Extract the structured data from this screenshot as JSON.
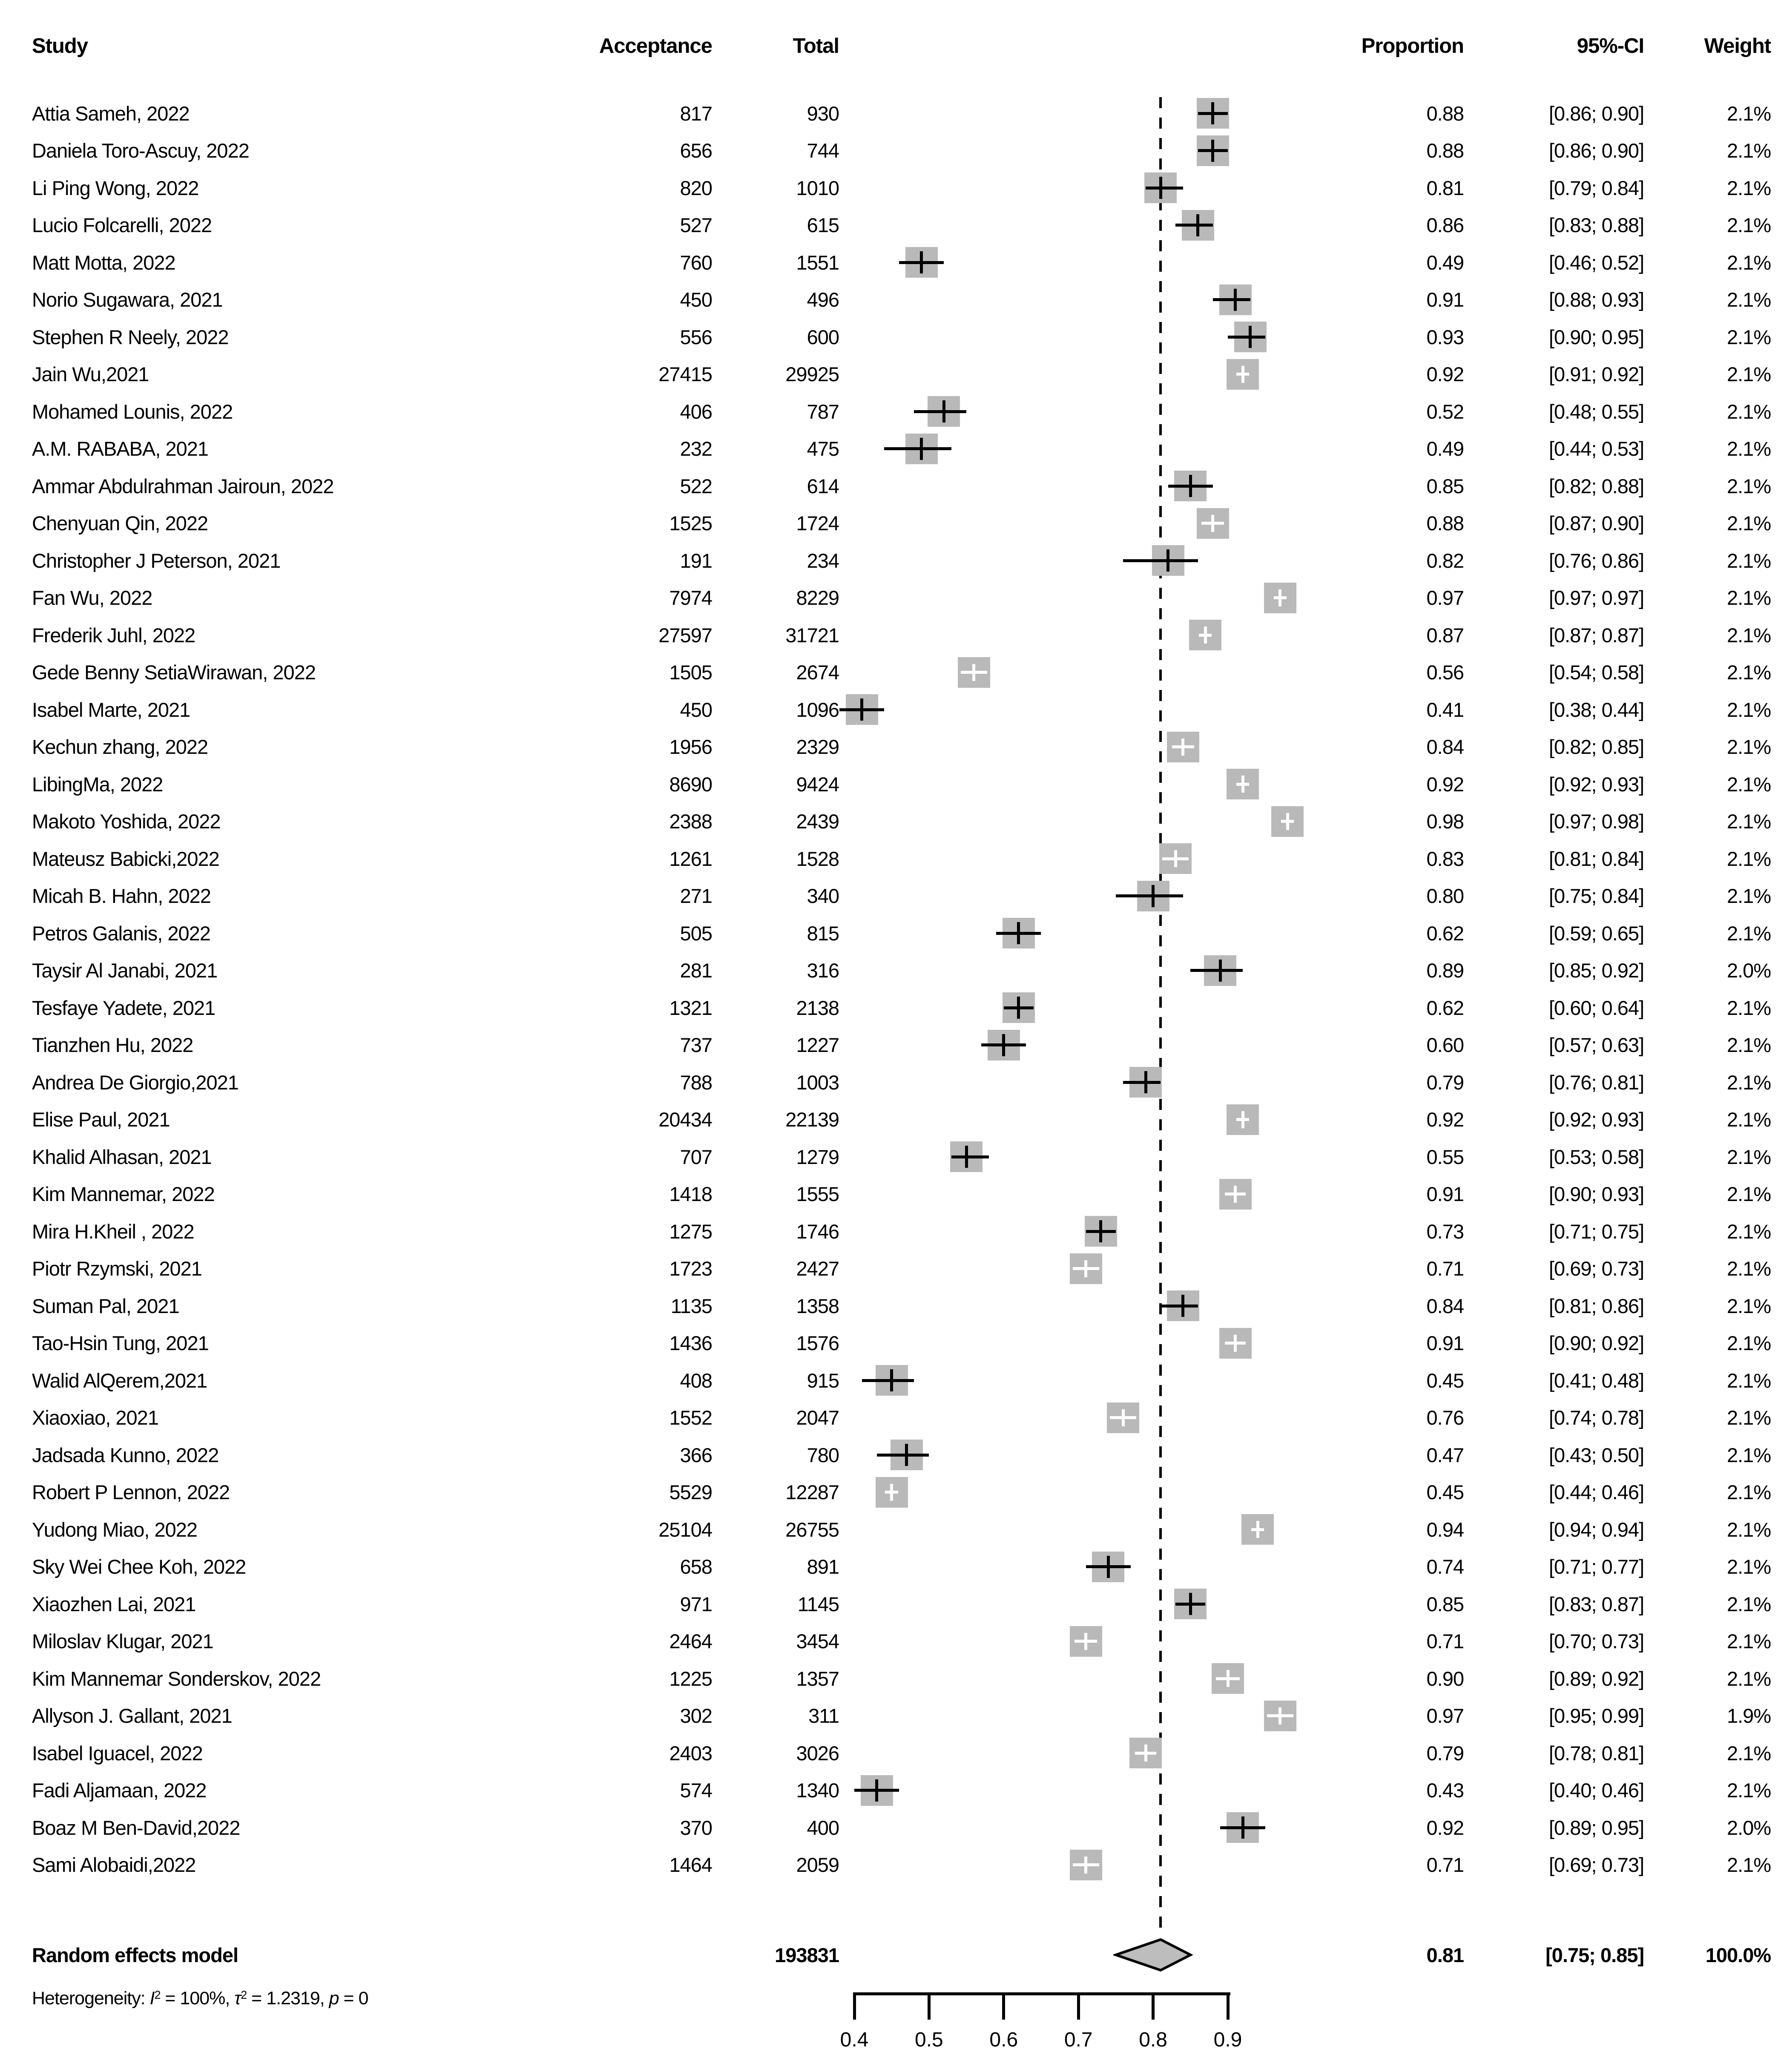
{
  "header": {
    "study": "Study",
    "acceptance": "Acceptance",
    "total": "Total",
    "proportion": "Proportion",
    "ci": "95%-CI",
    "weight": "Weight"
  },
  "chart_data": {
    "type": "scatter",
    "subtype": "forest-plot",
    "title": "",
    "xlabel": "",
    "legend_position": "none",
    "grid": false,
    "x_ticks": [
      "0.4",
      "0.5",
      "0.6",
      "0.7",
      "0.8",
      "0.9"
    ],
    "x_tick_values": [
      0.4,
      0.5,
      0.6,
      0.7,
      0.8,
      0.9
    ],
    "reference_line": 0.81,
    "points": [
      {
        "name": "Attia Sameh, 2022",
        "acceptance": 817,
        "total": 930,
        "proportion": "0.88",
        "ci": "[0.86; 0.90]",
        "weight": "2.1%"
      },
      {
        "name": "Daniela Toro-Ascuy, 2022",
        "acceptance": 656,
        "total": 744,
        "proportion": "0.88",
        "ci": "[0.86; 0.90]",
        "weight": "2.1%"
      },
      {
        "name": "Li Ping Wong, 2022",
        "acceptance": 820,
        "total": 1010,
        "proportion": "0.81",
        "ci": "[0.79; 0.84]",
        "weight": "2.1%"
      },
      {
        "name": "Lucio Folcarelli, 2022",
        "acceptance": 527,
        "total": 615,
        "proportion": "0.86",
        "ci": "[0.83; 0.88]",
        "weight": "2.1%"
      },
      {
        "name": "Matt Motta, 2022",
        "acceptance": 760,
        "total": 1551,
        "proportion": "0.49",
        "ci": "[0.46; 0.52]",
        "weight": "2.1%"
      },
      {
        "name": "Norio Sugawara, 2021",
        "acceptance": 450,
        "total": 496,
        "proportion": "0.91",
        "ci": "[0.88; 0.93]",
        "weight": "2.1%"
      },
      {
        "name": "Stephen R Neely, 2022",
        "acceptance": 556,
        "total": 600,
        "proportion": "0.93",
        "ci": "[0.90; 0.95]",
        "weight": "2.1%"
      },
      {
        "name": "Jain Wu,2021",
        "acceptance": 27415,
        "total": 29925,
        "proportion": "0.92",
        "ci": "[0.91; 0.92]",
        "weight": "2.1%"
      },
      {
        "name": "Mohamed Lounis, 2022",
        "acceptance": 406,
        "total": 787,
        "proportion": "0.52",
        "ci": "[0.48; 0.55]",
        "weight": "2.1%"
      },
      {
        "name": "A.M. RABABA, 2021",
        "acceptance": 232,
        "total": 475,
        "proportion": "0.49",
        "ci": "[0.44; 0.53]",
        "weight": "2.1%"
      },
      {
        "name": "Ammar Abdulrahman Jairoun, 2022",
        "acceptance": 522,
        "total": 614,
        "proportion": "0.85",
        "ci": "[0.82; 0.88]",
        "weight": "2.1%"
      },
      {
        "name": "Chenyuan Qin, 2022",
        "acceptance": 1525,
        "total": 1724,
        "proportion": "0.88",
        "ci": "[0.87; 0.90]",
        "weight": "2.1%"
      },
      {
        "name": "Christopher J Peterson, 2021",
        "acceptance": 191,
        "total": 234,
        "proportion": "0.82",
        "ci": "[0.76; 0.86]",
        "weight": "2.1%"
      },
      {
        "name": "Fan Wu, 2022",
        "acceptance": 7974,
        "total": 8229,
        "proportion": "0.97",
        "ci": "[0.97; 0.97]",
        "weight": "2.1%"
      },
      {
        "name": "Frederik Juhl, 2022",
        "acceptance": 27597,
        "total": 31721,
        "proportion": "0.87",
        "ci": "[0.87; 0.87]",
        "weight": "2.1%"
      },
      {
        "name": "Gede Benny SetiaWirawan, 2022",
        "acceptance": 1505,
        "total": 2674,
        "proportion": "0.56",
        "ci": "[0.54; 0.58]",
        "weight": "2.1%"
      },
      {
        "name": "Isabel Marte, 2021",
        "acceptance": 450,
        "total": 1096,
        "proportion": "0.41",
        "ci": "[0.38; 0.44]",
        "weight": "2.1%"
      },
      {
        "name": "Kechun zhang, 2022",
        "acceptance": 1956,
        "total": 2329,
        "proportion": "0.84",
        "ci": "[0.82; 0.85]",
        "weight": "2.1%"
      },
      {
        "name": "LibingMa, 2022",
        "acceptance": 8690,
        "total": 9424,
        "proportion": "0.92",
        "ci": "[0.92; 0.93]",
        "weight": "2.1%"
      },
      {
        "name": "Makoto Yoshida, 2022",
        "acceptance": 2388,
        "total": 2439,
        "proportion": "0.98",
        "ci": "[0.97; 0.98]",
        "weight": "2.1%"
      },
      {
        "name": "Mateusz Babicki,2022",
        "acceptance": 1261,
        "total": 1528,
        "proportion": "0.83",
        "ci": "[0.81; 0.84]",
        "weight": "2.1%"
      },
      {
        "name": "Micah B. Hahn, 2022",
        "acceptance": 271,
        "total": 340,
        "proportion": "0.80",
        "ci": "[0.75; 0.84]",
        "weight": "2.1%"
      },
      {
        "name": "Petros Galanis, 2022",
        "acceptance": 505,
        "total": 815,
        "proportion": "0.62",
        "ci": "[0.59; 0.65]",
        "weight": "2.1%"
      },
      {
        "name": "Taysir Al Janabi, 2021",
        "acceptance": 281,
        "total": 316,
        "proportion": "0.89",
        "ci": "[0.85; 0.92]",
        "weight": "2.0%"
      },
      {
        "name": "Tesfaye Yadete, 2021",
        "acceptance": 1321,
        "total": 2138,
        "proportion": "0.62",
        "ci": "[0.60; 0.64]",
        "weight": "2.1%"
      },
      {
        "name": "Tianzhen Hu, 2022",
        "acceptance": 737,
        "total": 1227,
        "proportion": "0.60",
        "ci": "[0.57; 0.63]",
        "weight": "2.1%"
      },
      {
        "name": "Andrea De Giorgio,2021",
        "acceptance": 788,
        "total": 1003,
        "proportion": "0.79",
        "ci": "[0.76; 0.81]",
        "weight": "2.1%"
      },
      {
        "name": "Elise Paul, 2021",
        "acceptance": 20434,
        "total": 22139,
        "proportion": "0.92",
        "ci": "[0.92; 0.93]",
        "weight": "2.1%"
      },
      {
        "name": "Khalid Alhasan, 2021",
        "acceptance": 707,
        "total": 1279,
        "proportion": "0.55",
        "ci": "[0.53; 0.58]",
        "weight": "2.1%"
      },
      {
        "name": "Kim Mannemar, 2022",
        "acceptance": 1418,
        "total": 1555,
        "proportion": "0.91",
        "ci": "[0.90; 0.93]",
        "weight": "2.1%"
      },
      {
        "name": "Mira H.Kheil , 2022",
        "acceptance": 1275,
        "total": 1746,
        "proportion": "0.73",
        "ci": "[0.71; 0.75]",
        "weight": "2.1%"
      },
      {
        "name": "Piotr Rzymski, 2021",
        "acceptance": 1723,
        "total": 2427,
        "proportion": "0.71",
        "ci": "[0.69; 0.73]",
        "weight": "2.1%"
      },
      {
        "name": "Suman Pal, 2021",
        "acceptance": 1135,
        "total": 1358,
        "proportion": "0.84",
        "ci": "[0.81; 0.86]",
        "weight": "2.1%"
      },
      {
        "name": "Tao-Hsin Tung, 2021",
        "acceptance": 1436,
        "total": 1576,
        "proportion": "0.91",
        "ci": "[0.90; 0.92]",
        "weight": "2.1%"
      },
      {
        "name": "Walid AlQerem,2021",
        "acceptance": 408,
        "total": 915,
        "proportion": "0.45",
        "ci": "[0.41; 0.48]",
        "weight": "2.1%"
      },
      {
        "name": "Xiaoxiao, 2021",
        "acceptance": 1552,
        "total": 2047,
        "proportion": "0.76",
        "ci": "[0.74; 0.78]",
        "weight": "2.1%"
      },
      {
        "name": "Jadsada Kunno, 2022",
        "acceptance": 366,
        "total": 780,
        "proportion": "0.47",
        "ci": "[0.43; 0.50]",
        "weight": "2.1%"
      },
      {
        "name": "Robert P Lennon, 2022",
        "acceptance": 5529,
        "total": 12287,
        "proportion": "0.45",
        "ci": "[0.44; 0.46]",
        "weight": "2.1%"
      },
      {
        "name": "Yudong Miao, 2022",
        "acceptance": 25104,
        "total": 26755,
        "proportion": "0.94",
        "ci": "[0.94; 0.94]",
        "weight": "2.1%"
      },
      {
        "name": "Sky Wei Chee Koh, 2022",
        "acceptance": 658,
        "total": 891,
        "proportion": "0.74",
        "ci": "[0.71; 0.77]",
        "weight": "2.1%"
      },
      {
        "name": "Xiaozhen Lai, 2021",
        "acceptance": 971,
        "total": 1145,
        "proportion": "0.85",
        "ci": "[0.83; 0.87]",
        "weight": "2.1%"
      },
      {
        "name": "Miloslav Klugar, 2021",
        "acceptance": 2464,
        "total": 3454,
        "proportion": "0.71",
        "ci": "[0.70; 0.73]",
        "weight": "2.1%"
      },
      {
        "name": "Kim Mannemar Sonderskov, 2022",
        "acceptance": 1225,
        "total": 1357,
        "proportion": "0.90",
        "ci": "[0.89; 0.92]",
        "weight": "2.1%"
      },
      {
        "name": "Allyson J. Gallant, 2021",
        "acceptance": 302,
        "total": 311,
        "proportion": "0.97",
        "ci": "[0.95; 0.99]",
        "weight": "1.9%"
      },
      {
        "name": "Isabel Iguacel, 2022",
        "acceptance": 2403,
        "total": 3026,
        "proportion": "0.79",
        "ci": "[0.78; 0.81]",
        "weight": "2.1%"
      },
      {
        "name": "Fadi Aljamaan, 2022",
        "acceptance": 574,
        "total": 1340,
        "proportion": "0.43",
        "ci": "[0.40; 0.46]",
        "weight": "2.1%"
      },
      {
        "name": "Boaz M Ben-David,2022",
        "acceptance": 370,
        "total": 400,
        "proportion": "0.92",
        "ci": "[0.89; 0.95]",
        "weight": "2.0%"
      },
      {
        "name": "Sami Alobaidi,2022",
        "acceptance": 1464,
        "total": 2059,
        "proportion": "0.71",
        "ci": "[0.69; 0.73]",
        "weight": "2.1%"
      }
    ],
    "summary": {
      "label": "Random effects model",
      "total": "193831",
      "proportion": "0.81",
      "ci": "[0.75; 0.85]",
      "weight": "100.0%",
      "diamond_lo": 0.75,
      "diamond_hi": 0.85,
      "diamond_apex": 0.81
    },
    "heterogeneity": {
      "prefix": "Heterogeneity: ",
      "i_sym": "I",
      "i_sup": "2",
      "seg1": " = 100%, ",
      "tau_sym": "τ",
      "tau_sup": "2",
      "seg2": " = 1.2319, ",
      "p_sym": "p",
      "seg3": " = 0"
    }
  },
  "colors": {
    "square": "#b9b9b9",
    "diamond_fill": "#bdbdbd",
    "ci_line": "#000000",
    "inner_cross": "#ffffff",
    "text": "#000000"
  }
}
